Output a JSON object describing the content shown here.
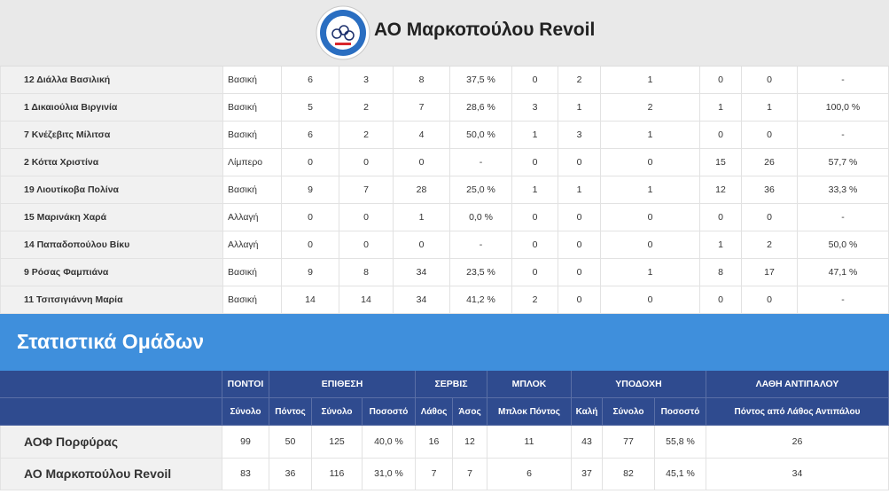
{
  "header": {
    "title": "ΑΟ Μαρκοπούλου Revoil"
  },
  "players": {
    "rows": [
      [
        "12 Διάλλα Βασιλική",
        "Βασική",
        "6",
        "3",
        "8",
        "37,5 %",
        "0",
        "2",
        "1",
        "0",
        "0",
        "-"
      ],
      [
        "1 Δικαιούλια Βιργινία",
        "Βασική",
        "5",
        "2",
        "7",
        "28,6 %",
        "3",
        "1",
        "2",
        "1",
        "1",
        "100,0 %"
      ],
      [
        "7 Κνέζεβιτς Μίλιτσα",
        "Βασική",
        "6",
        "2",
        "4",
        "50,0 %",
        "1",
        "3",
        "1",
        "0",
        "0",
        "-"
      ],
      [
        "2 Κόττα Χριστίνα",
        "Λίμπερο",
        "0",
        "0",
        "0",
        "-",
        "0",
        "0",
        "0",
        "15",
        "26",
        "57,7 %"
      ],
      [
        "19 Λιουτίκοβα Πολίνα",
        "Βασική",
        "9",
        "7",
        "28",
        "25,0 %",
        "1",
        "1",
        "1",
        "12",
        "36",
        "33,3 %"
      ],
      [
        "15 Μαρινάκη Χαρά",
        "Αλλαγή",
        "0",
        "0",
        "1",
        "0,0 %",
        "0",
        "0",
        "0",
        "0",
        "0",
        "-"
      ],
      [
        "14 Παπαδοπούλου Βίκυ",
        "Αλλαγή",
        "0",
        "0",
        "0",
        "-",
        "0",
        "0",
        "0",
        "1",
        "2",
        "50,0 %"
      ],
      [
        "9 Ρόσας Φαμπιάνα",
        "Βασική",
        "9",
        "8",
        "34",
        "23,5 %",
        "0",
        "0",
        "1",
        "8",
        "17",
        "47,1 %"
      ],
      [
        "11 Τσιτσιγιάννη Μαρία",
        "Βασική",
        "14",
        "14",
        "34",
        "41,2 %",
        "2",
        "0",
        "0",
        "0",
        "0",
        "-"
      ]
    ]
  },
  "team_stats": {
    "title": "Στατιστικά Ομάδων",
    "groups": [
      {
        "label": "ΠΟΝΤΟΙ",
        "columns": [
          "Σύνολο"
        ]
      },
      {
        "label": "ΕΠΙΘΕΣΗ",
        "columns": [
          "Πόντος",
          "Σύνολο",
          "Ποσοστό"
        ]
      },
      {
        "label": "ΣΕΡΒΙΣ",
        "columns": [
          "Λάθος",
          "Άσος"
        ]
      },
      {
        "label": "ΜΠΛΟΚ",
        "columns": [
          "Μπλοκ Πόντος"
        ]
      },
      {
        "label": "ΥΠΟΔΟΧΗ",
        "columns": [
          "Καλή",
          "Σύνολο",
          "Ποσοστό"
        ]
      },
      {
        "label": "ΛΑΘΗ ΑΝΤΙΠΑΛΟΥ",
        "columns": [
          "Πόντος από Λάθος Αντιπάλου"
        ]
      }
    ],
    "rows": [
      [
        "ΑΟΦ Πορφύρας",
        "99",
        "50",
        "125",
        "40,0 %",
        "16",
        "12",
        "11",
        "43",
        "77",
        "55,8 %",
        "26"
      ],
      [
        "ΑΟ Μαρκοπούλου Revoil",
        "83",
        "36",
        "116",
        "31,0 %",
        "7",
        "7",
        "6",
        "37",
        "82",
        "45,1 %",
        "34"
      ]
    ]
  }
}
